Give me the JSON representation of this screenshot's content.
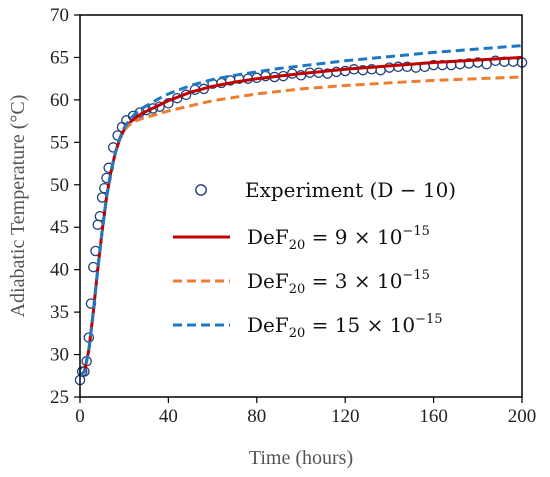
{
  "chart_data": {
    "type": "line",
    "xlabel": "Time (hours)",
    "ylabel": "Adiabatic Temperature (°C)",
    "xlim": [
      0,
      200
    ],
    "ylim": [
      25,
      70
    ],
    "xticks": [
      0,
      40,
      80,
      120,
      160,
      200
    ],
    "yticks": [
      25,
      30,
      35,
      40,
      45,
      50,
      55,
      60,
      65,
      70
    ],
    "grid": false,
    "legend_position": "center-right",
    "series": [
      {
        "name": "Experiment (D − 10)",
        "legend_parts": {
          "main": "Experiment (D − 10)"
        },
        "style": "markers",
        "color": "#1f3f7a",
        "x": [
          0,
          1,
          2,
          3,
          4,
          5,
          6,
          7,
          8,
          9,
          10,
          11,
          12,
          13,
          15,
          17,
          19,
          21,
          24,
          27,
          30,
          33,
          36,
          40,
          44,
          48,
          52,
          56,
          60,
          64,
          68,
          72,
          76,
          80,
          84,
          88,
          92,
          96,
          100,
          104,
          108,
          112,
          116,
          120,
          124,
          128,
          132,
          136,
          140,
          144,
          148,
          152,
          156,
          160,
          164,
          168,
          172,
          176,
          180,
          184,
          188,
          192,
          196,
          200
        ],
        "y": [
          27.0,
          28.0,
          28.0,
          29.2,
          32.0,
          36.0,
          40.3,
          42.2,
          45.3,
          46.3,
          48.5,
          49.6,
          50.8,
          52.0,
          54.4,
          55.8,
          56.8,
          57.6,
          58.1,
          58.5,
          58.8,
          59.0,
          59.2,
          59.6,
          60.2,
          60.6,
          61.2,
          61.3,
          61.9,
          62.0,
          62.3,
          62.5,
          62.5,
          62.6,
          62.8,
          62.7,
          62.8,
          63.1,
          62.9,
          63.2,
          63.2,
          63.1,
          63.3,
          63.4,
          63.6,
          63.5,
          63.6,
          63.5,
          63.8,
          63.9,
          63.9,
          63.8,
          63.9,
          64.1,
          64.1,
          64.1,
          64.2,
          64.3,
          64.4,
          64.2,
          64.6,
          64.5,
          64.5,
          64.4
        ]
      },
      {
        "name": "DeF20 = 9 × 10−15",
        "legend_parts": {
          "lhs": "DeF",
          "sub": "20",
          "mid": " = 9 × 10",
          "sup": "−15"
        },
        "style": "solid",
        "color": "#c00000",
        "x": [
          0,
          2,
          4,
          6,
          8,
          10,
          12,
          14,
          16,
          18,
          20,
          22,
          25,
          28,
          32,
          36,
          40,
          50,
          60,
          70,
          80,
          90,
          100,
          120,
          140,
          160,
          180,
          200
        ],
        "y": [
          27.5,
          28.0,
          30.5,
          35.0,
          40.0,
          44.5,
          48.5,
          51.5,
          53.8,
          55.4,
          56.5,
          57.2,
          57.9,
          58.4,
          58.9,
          59.4,
          59.9,
          60.9,
          61.6,
          62.1,
          62.5,
          62.8,
          63.1,
          63.6,
          64.0,
          64.4,
          64.7,
          65.0
        ]
      },
      {
        "name": "DeF20 = 3 × 10−15",
        "legend_parts": {
          "lhs": "DeF",
          "sub": "20",
          "mid": " = 3 × 10",
          "sup": "−15"
        },
        "style": "dashed",
        "color": "#ed7d31",
        "x": [
          0,
          2,
          4,
          6,
          8,
          10,
          12,
          14,
          16,
          18,
          20,
          22,
          25,
          28,
          32,
          36,
          40,
          50,
          60,
          70,
          80,
          90,
          100,
          120,
          140,
          160,
          180,
          200
        ],
        "y": [
          27.5,
          28.0,
          30.5,
          35.0,
          40.0,
          44.5,
          48.5,
          51.5,
          53.8,
          55.4,
          56.4,
          57.0,
          57.5,
          57.8,
          58.1,
          58.4,
          58.7,
          59.3,
          59.9,
          60.3,
          60.7,
          61.0,
          61.3,
          61.7,
          62.0,
          62.3,
          62.5,
          62.7
        ]
      },
      {
        "name": "DeF20 = 15 × 10−15",
        "legend_parts": {
          "lhs": "DeF",
          "sub": "20",
          "mid": " = 15 × 10",
          "sup": "−15"
        },
        "style": "dashed",
        "color": "#1f77c4",
        "x": [
          0,
          2,
          4,
          6,
          8,
          10,
          12,
          14,
          16,
          18,
          20,
          22,
          25,
          28,
          32,
          36,
          40,
          50,
          60,
          70,
          80,
          90,
          100,
          120,
          140,
          160,
          180,
          200
        ],
        "y": [
          27.5,
          28.0,
          30.5,
          35.0,
          40.0,
          44.5,
          48.5,
          51.5,
          53.8,
          55.5,
          56.7,
          57.5,
          58.4,
          59.0,
          59.6,
          60.2,
          60.7,
          61.7,
          62.4,
          62.9,
          63.3,
          63.7,
          64.0,
          64.6,
          65.1,
          65.6,
          66.0,
          66.4
        ]
      }
    ]
  }
}
